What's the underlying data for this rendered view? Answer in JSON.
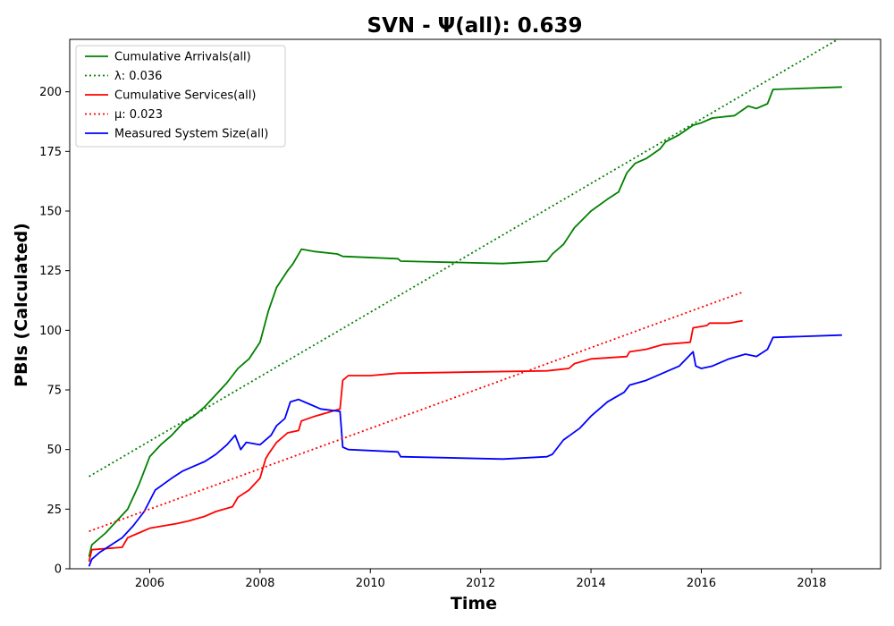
{
  "chart_data": {
    "type": "line",
    "title": "SVN -  Ψ(all): 0.639",
    "xlabel": "Time",
    "ylabel": "PBIs (Calculated)",
    "xlim": [
      2004.55,
      2019.25
    ],
    "ylim": [
      0,
      222
    ],
    "x_ticks": [
      2006,
      2008,
      2010,
      2012,
      2014,
      2016,
      2018
    ],
    "y_ticks": [
      0,
      25,
      50,
      75,
      100,
      125,
      150,
      175,
      200
    ],
    "grid": false,
    "legend_position": "top-left",
    "series": [
      {
        "name": "Cumulative Arrivals(all)",
        "color": "#008000",
        "style": "solid",
        "x": [
          2004.9,
          2004.95,
          2005.05,
          2005.2,
          2005.4,
          2005.6,
          2005.8,
          2006.0,
          2006.2,
          2006.4,
          2006.6,
          2006.8,
          2007.0,
          2007.2,
          2007.4,
          2007.6,
          2007.8,
          2008.0,
          2008.15,
          2008.3,
          2008.5,
          2008.6,
          2008.75,
          2009.0,
          2009.4,
          2009.5,
          2010.5,
          2010.55,
          2012.4,
          2013.2,
          2013.3,
          2013.5,
          2013.7,
          2014.0,
          2014.3,
          2014.5,
          2014.65,
          2014.8,
          2015.0,
          2015.25,
          2015.35,
          2015.6,
          2015.85,
          2016.0,
          2016.2,
          2016.6,
          2016.85,
          2017.0,
          2017.2,
          2017.3,
          2018.55
        ],
        "y": [
          5,
          10,
          12,
          15,
          20,
          25,
          35,
          47,
          52,
          56,
          61,
          64,
          68,
          73,
          78,
          84,
          88,
          95,
          108,
          118,
          125,
          128,
          134,
          133,
          132,
          131,
          130,
          129,
          128,
          129,
          132,
          136,
          143,
          150,
          155,
          158,
          166,
          170,
          172,
          176,
          179,
          182,
          186,
          187,
          189,
          190,
          194,
          193,
          195,
          201,
          202
        ]
      },
      {
        "name": "Cumulative Services(all)",
        "color": "#ff0000",
        "style": "solid",
        "x": [
          2004.9,
          2004.95,
          2005.5,
          2005.6,
          2005.8,
          2006.0,
          2006.5,
          2006.7,
          2007.0,
          2007.2,
          2007.5,
          2007.6,
          2007.8,
          2008.0,
          2008.1,
          2008.15,
          2008.3,
          2008.5,
          2008.7,
          2008.75,
          2009.0,
          2009.3,
          2009.45,
          2009.5,
          2009.6,
          2010.0,
          2010.5,
          2013.2,
          2013.6,
          2013.7,
          2014.0,
          2014.65,
          2014.7,
          2015.0,
          2015.3,
          2015.8,
          2015.85,
          2016.1,
          2016.15,
          2016.5,
          2016.75
        ],
        "y": [
          3,
          8,
          9,
          13,
          15,
          17,
          19,
          20,
          22,
          24,
          26,
          30,
          33,
          38,
          46,
          48,
          53,
          57,
          58,
          62,
          64,
          66,
          67,
          79,
          81,
          81,
          82,
          83,
          84,
          86,
          88,
          89,
          91,
          92,
          94,
          95,
          101,
          102,
          103,
          103,
          104
        ]
      },
      {
        "name": "Measured System Size(all)",
        "color": "#0000ff",
        "style": "solid",
        "x": [
          2004.9,
          2004.95,
          2005.1,
          2005.3,
          2005.5,
          2005.7,
          2005.9,
          2006.1,
          2006.4,
          2006.6,
          2006.8,
          2007.0,
          2007.2,
          2007.4,
          2007.55,
          2007.65,
          2007.75,
          2008.0,
          2008.2,
          2008.3,
          2008.45,
          2008.55,
          2008.7,
          2008.9,
          2009.1,
          2009.45,
          2009.5,
          2009.6,
          2010.5,
          2010.55,
          2012.4,
          2013.2,
          2013.3,
          2013.5,
          2013.8,
          2014.0,
          2014.3,
          2014.6,
          2014.7,
          2015.0,
          2015.3,
          2015.6,
          2015.85,
          2015.9,
          2016.0,
          2016.2,
          2016.5,
          2016.8,
          2017.0,
          2017.2,
          2017.3,
          2018.55
        ],
        "y": [
          1,
          4,
          7,
          10,
          13,
          18,
          24,
          33,
          38,
          41,
          43,
          45,
          48,
          52,
          56,
          50,
          53,
          52,
          56,
          60,
          63,
          70,
          71,
          69,
          67,
          66,
          51,
          50,
          49,
          47,
          46,
          47,
          48,
          54,
          59,
          64,
          70,
          74,
          77,
          79,
          82,
          85,
          91,
          85,
          84,
          85,
          88,
          90,
          89,
          92,
          97,
          98
        ]
      },
      {
        "name": "λ: 0.036",
        "color": "#008000",
        "style": "dotted",
        "x": [
          2004.9,
          2018.55
        ],
        "y": [
          38.7,
          223
        ]
      },
      {
        "name": "μ: 0.023",
        "color": "#ff0000",
        "style": "dotted",
        "x": [
          2004.9,
          2016.75
        ],
        "y": [
          15.7,
          116
        ]
      }
    ]
  }
}
